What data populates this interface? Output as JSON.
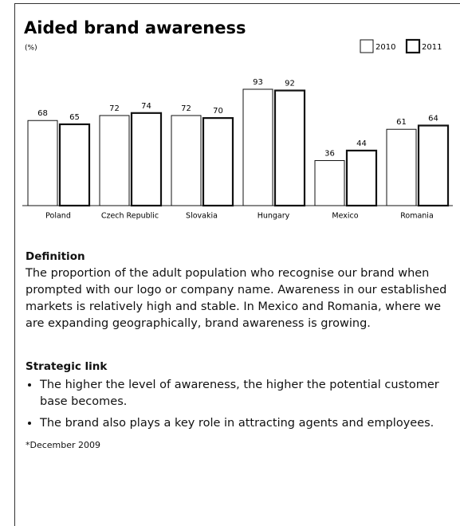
{
  "chart_data": {
    "type": "bar",
    "title": "Aided brand awareness",
    "subtitle": "(%)",
    "categories": [
      "Poland",
      "Czech Republic",
      "Slovakia",
      "Hungary",
      "Mexico",
      "Romania"
    ],
    "series": [
      {
        "name": "2010",
        "color": "#ffffff",
        "values": [
          68,
          72,
          72,
          93,
          36,
          61
        ]
      },
      {
        "name": "2011",
        "color": "#ffffff",
        "values": [
          65,
          74,
          70,
          92,
          44,
          64
        ]
      }
    ],
    "ylim": [
      0,
      100
    ],
    "legend": "top-right",
    "grid": false
  },
  "definition": {
    "heading": "Definition",
    "text": "The proportion of the adult population who recognise our brand when prompted with our logo or company name. Awareness in our established markets is relatively high and stable. In Mexico and Romania, where we are expanding geographically, brand awareness is growing."
  },
  "strategic_link": {
    "heading": "Strategic link",
    "bullets": [
      "The higher the level of awareness, the higher the potential customer base becomes.",
      "The brand also plays a key role in attracting agents and employees."
    ]
  },
  "footnote": "*December 2009"
}
